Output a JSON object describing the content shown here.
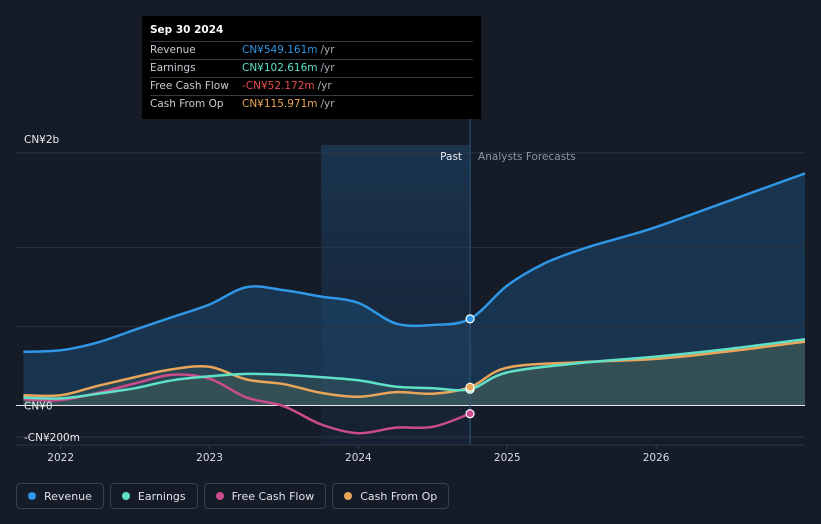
{
  "chart_data": {
    "type": "line",
    "title": "",
    "x_unit": "year",
    "xlim": [
      2021.7,
      2027.0
    ],
    "ylim": [
      -250,
      1650
    ],
    "y_labels": [
      {
        "value": 1600,
        "label": "CN¥2b"
      },
      {
        "value": 0,
        "label": "CN¥0"
      },
      {
        "value": -200,
        "label": "-CN¥200m"
      }
    ],
    "x_ticks": [
      {
        "value": 2022,
        "label": "2022"
      },
      {
        "value": 2023,
        "label": "2023"
      },
      {
        "value": 2024,
        "label": "2024"
      },
      {
        "value": 2025,
        "label": "2025"
      },
      {
        "value": 2026,
        "label": "2026"
      }
    ],
    "past_label": "Past",
    "forecast_label": "Analysts Forecasts",
    "divider_x": 2024.75,
    "highlight_start": 2023.75,
    "series": [
      {
        "name": "Revenue",
        "color": "#2f97e5",
        "fill": true,
        "x": [
          2021.75,
          2022.0,
          2022.25,
          2022.5,
          2022.75,
          2023.0,
          2023.25,
          2023.5,
          2023.75,
          2024.0,
          2024.25,
          2024.5,
          2024.75,
          2025.0,
          2025.25,
          2025.5,
          2025.75,
          2026.0,
          2026.5,
          2027.0
        ],
        "y": [
          340,
          350,
          400,
          480,
          560,
          640,
          750,
          730,
          690,
          650,
          520,
          510,
          549,
          760,
          900,
          990,
          1060,
          1130,
          1300,
          1470
        ]
      },
      {
        "name": "Earnings",
        "color": "#5fe0c7",
        "fill": true,
        "x": [
          2021.75,
          2022.0,
          2022.25,
          2022.5,
          2022.75,
          2023.0,
          2023.25,
          2023.5,
          2023.75,
          2024.0,
          2024.25,
          2024.5,
          2024.75,
          2025.0,
          2025.5,
          2026.0,
          2026.5,
          2027.0
        ],
        "y": [
          50,
          45,
          75,
          110,
          160,
          185,
          200,
          195,
          180,
          160,
          120,
          110,
          103,
          210,
          270,
          310,
          360,
          420
        ]
      },
      {
        "name": "Free Cash Flow",
        "color": "#cc4b8c",
        "fill": false,
        "x": [
          2021.75,
          2022.0,
          2022.25,
          2022.5,
          2022.75,
          2023.0,
          2023.25,
          2023.5,
          2023.75,
          2024.0,
          2024.25,
          2024.5,
          2024.75
        ],
        "y": [
          40,
          35,
          80,
          140,
          195,
          170,
          50,
          -5,
          -120,
          -175,
          -140,
          -135,
          -52
        ]
      },
      {
        "name": "Cash From Op",
        "color": "#e9a65a",
        "fill": true,
        "x": [
          2021.75,
          2022.0,
          2022.25,
          2022.5,
          2022.75,
          2023.0,
          2023.25,
          2023.5,
          2023.75,
          2024.0,
          2024.25,
          2024.5,
          2024.75,
          2025.0,
          2025.5,
          2026.0,
          2026.5,
          2027.0
        ],
        "y": [
          65,
          65,
          125,
          180,
          230,
          245,
          165,
          135,
          80,
          55,
          85,
          75,
          116,
          240,
          275,
          295,
          345,
          405
        ]
      }
    ]
  },
  "tooltip": {
    "date": "Sep 30 2024",
    "unit": "/yr",
    "rows": [
      {
        "label": "Revenue",
        "value": "CN¥549.161m",
        "color": "#2f97e5"
      },
      {
        "label": "Earnings",
        "value": "CN¥102.616m",
        "color": "#5fe0c7"
      },
      {
        "label": "Free Cash Flow",
        "value": "-CN¥52.172m",
        "color": "#e84b4b"
      },
      {
        "label": "Cash From Op",
        "value": "CN¥115.971m",
        "color": "#e9a65a"
      }
    ]
  },
  "legend": [
    {
      "label": "Revenue",
      "color": "#2f97e5"
    },
    {
      "label": "Earnings",
      "color": "#5fe0c7"
    },
    {
      "label": "Free Cash Flow",
      "color": "#cc4b8c"
    },
    {
      "label": "Cash From Op",
      "color": "#e9a65a"
    }
  ]
}
